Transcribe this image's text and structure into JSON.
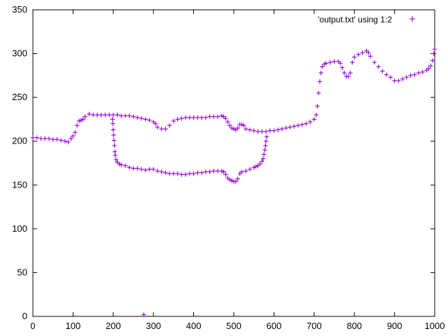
{
  "chart_data": {
    "type": "scatter",
    "title": "",
    "xlabel": "",
    "ylabel": "",
    "xlim": [
      0,
      1000
    ],
    "ylim": [
      0,
      350
    ],
    "xticks": [
      0,
      100,
      200,
      300,
      400,
      500,
      600,
      700,
      800,
      900,
      1000
    ],
    "yticks": [
      0,
      50,
      100,
      150,
      200,
      250,
      300,
      350
    ],
    "grid": false,
    "legend_position": "top-right",
    "marker": "plus",
    "color": "#9400d3",
    "series": [
      {
        "name": "'output.txt' using 1:2",
        "points": [
          [
            0,
            204
          ],
          [
            10,
            204
          ],
          [
            20,
            203
          ],
          [
            30,
            203
          ],
          [
            40,
            203
          ],
          [
            50,
            202
          ],
          [
            60,
            202
          ],
          [
            70,
            201
          ],
          [
            80,
            200
          ],
          [
            88,
            199
          ],
          [
            95,
            203
          ],
          [
            100,
            206
          ],
          [
            105,
            210
          ],
          [
            110,
            218
          ],
          [
            115,
            223
          ],
          [
            120,
            224
          ],
          [
            125,
            225
          ],
          [
            130,
            228
          ],
          [
            140,
            231
          ],
          [
            150,
            230
          ],
          [
            160,
            230
          ],
          [
            170,
            230
          ],
          [
            180,
            230
          ],
          [
            190,
            230
          ],
          [
            200,
            230
          ],
          [
            210,
            230
          ],
          [
            220,
            229
          ],
          [
            230,
            229
          ],
          [
            240,
            229
          ],
          [
            250,
            228
          ],
          [
            260,
            227
          ],
          [
            270,
            226
          ],
          [
            280,
            225
          ],
          [
            290,
            224
          ],
          [
            300,
            222
          ],
          [
            305,
            220
          ],
          [
            310,
            216
          ],
          [
            320,
            214
          ],
          [
            330,
            214
          ],
          [
            340,
            218
          ],
          [
            350,
            223
          ],
          [
            360,
            225
          ],
          [
            370,
            226
          ],
          [
            380,
            227
          ],
          [
            390,
            227
          ],
          [
            400,
            227
          ],
          [
            410,
            227
          ],
          [
            420,
            227
          ],
          [
            430,
            227
          ],
          [
            440,
            228
          ],
          [
            450,
            228
          ],
          [
            460,
            228
          ],
          [
            470,
            229
          ],
          [
            475,
            228
          ],
          [
            480,
            226
          ],
          [
            485,
            222
          ],
          [
            490,
            218
          ],
          [
            495,
            215
          ],
          [
            500,
            214
          ],
          [
            505,
            213
          ],
          [
            510,
            215
          ],
          [
            515,
            219
          ],
          [
            520,
            219
          ],
          [
            525,
            218
          ],
          [
            530,
            214
          ],
          [
            540,
            213
          ],
          [
            550,
            212
          ],
          [
            560,
            211
          ],
          [
            570,
            211
          ],
          [
            580,
            211
          ],
          [
            590,
            212
          ],
          [
            600,
            212
          ],
          [
            610,
            213
          ],
          [
            620,
            214
          ],
          [
            630,
            215
          ],
          [
            640,
            216
          ],
          [
            650,
            217
          ],
          [
            660,
            218
          ],
          [
            670,
            219
          ],
          [
            680,
            220
          ],
          [
            690,
            222
          ],
          [
            700,
            225
          ],
          [
            705,
            230
          ],
          [
            708,
            240
          ],
          [
            711,
            255
          ],
          [
            714,
            268
          ],
          [
            717,
            278
          ],
          [
            720,
            285
          ],
          [
            725,
            288
          ],
          [
            730,
            289
          ],
          [
            740,
            290
          ],
          [
            750,
            291
          ],
          [
            760,
            291
          ],
          [
            765,
            289
          ],
          [
            770,
            284
          ],
          [
            775,
            278
          ],
          [
            780,
            274
          ],
          [
            785,
            274
          ],
          [
            790,
            278
          ],
          [
            795,
            290
          ],
          [
            800,
            296
          ],
          [
            810,
            299
          ],
          [
            820,
            301
          ],
          [
            830,
            303
          ],
          [
            835,
            301
          ],
          [
            840,
            297
          ],
          [
            850,
            290
          ],
          [
            860,
            285
          ],
          [
            870,
            280
          ],
          [
            880,
            276
          ],
          [
            890,
            273
          ],
          [
            900,
            269
          ],
          [
            910,
            269
          ],
          [
            920,
            271
          ],
          [
            930,
            273
          ],
          [
            940,
            275
          ],
          [
            950,
            276
          ],
          [
            960,
            278
          ],
          [
            970,
            279
          ],
          [
            980,
            281
          ],
          [
            985,
            283
          ],
          [
            990,
            286
          ],
          [
            995,
            292
          ],
          [
            998,
            300
          ],
          [
            1000,
            305
          ],
          [
            198,
            225
          ],
          [
            199,
            220
          ],
          [
            200,
            213
          ],
          [
            201,
            207
          ],
          [
            202,
            201
          ],
          [
            203,
            195
          ],
          [
            204,
            188
          ],
          [
            205,
            184
          ],
          [
            207,
            179
          ],
          [
            210,
            176
          ],
          [
            215,
            174
          ],
          [
            220,
            173
          ],
          [
            230,
            172
          ],
          [
            240,
            170
          ],
          [
            250,
            169
          ],
          [
            260,
            169
          ],
          [
            270,
            168
          ],
          [
            280,
            167
          ],
          [
            290,
            168
          ],
          [
            300,
            168
          ],
          [
            310,
            166
          ],
          [
            320,
            165
          ],
          [
            330,
            164
          ],
          [
            340,
            163
          ],
          [
            350,
            163
          ],
          [
            360,
            163
          ],
          [
            370,
            162
          ],
          [
            380,
            162
          ],
          [
            390,
            163
          ],
          [
            400,
            163
          ],
          [
            410,
            164
          ],
          [
            420,
            164
          ],
          [
            430,
            165
          ],
          [
            440,
            165
          ],
          [
            450,
            166
          ],
          [
            460,
            166
          ],
          [
            470,
            166
          ],
          [
            475,
            165
          ],
          [
            480,
            162
          ],
          [
            485,
            158
          ],
          [
            490,
            156
          ],
          [
            495,
            155
          ],
          [
            500,
            154
          ],
          [
            505,
            154
          ],
          [
            510,
            157
          ],
          [
            515,
            163
          ],
          [
            520,
            165
          ],
          [
            530,
            166
          ],
          [
            540,
            168
          ],
          [
            550,
            170
          ],
          [
            555,
            171
          ],
          [
            560,
            172
          ],
          [
            565,
            174
          ],
          [
            570,
            177
          ],
          [
            573,
            180
          ],
          [
            575,
            185
          ],
          [
            577,
            190
          ],
          [
            579,
            195
          ],
          [
            580,
            200
          ],
          [
            582,
            205
          ],
          [
            276,
            2
          ]
        ]
      }
    ]
  }
}
